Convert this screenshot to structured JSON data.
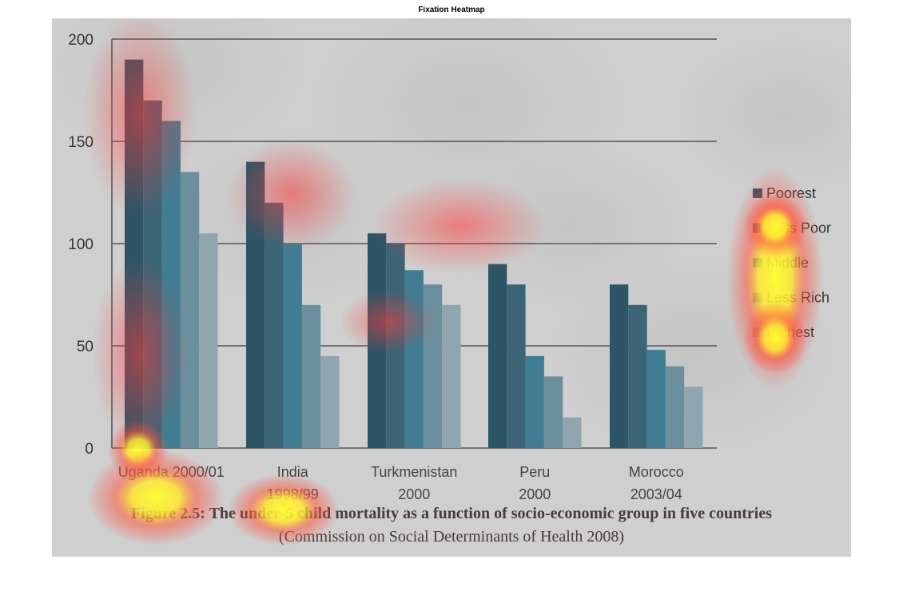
{
  "page": {
    "title": "Fixation Heatmap"
  },
  "chart_data": {
    "type": "bar",
    "categories": [
      [
        "Uganda 2000/01"
      ],
      [
        "India",
        "1998/99"
      ],
      [
        "Turkmenistan",
        "2000"
      ],
      [
        "Peru",
        "2000"
      ],
      [
        "Morocco",
        "2003/04"
      ]
    ],
    "series": [
      {
        "name": "Poorest",
        "values": [
          190,
          140,
          105,
          90,
          80
        ],
        "color": "#2d5566"
      },
      {
        "name": "Less Poor",
        "values": [
          170,
          120,
          100,
          80,
          70
        ],
        "color": "#3b6576"
      },
      {
        "name": "Middle",
        "values": [
          160,
          100,
          87,
          45,
          48
        ],
        "color": "#407d92"
      },
      {
        "name": "Less Rich",
        "values": [
          135,
          70,
          80,
          35,
          40
        ],
        "color": "#6b8f9c"
      },
      {
        "name": "Richest",
        "values": [
          105,
          45,
          70,
          15,
          30
        ],
        "color": "#8fa5af"
      }
    ],
    "ylim": [
      0,
      200
    ],
    "yticks": [
      0,
      50,
      100,
      150,
      200
    ],
    "grid": true,
    "legend_position": "right",
    "caption": "Figure 2.5: The under-5 child mortality as a function of socio-economic group in five countries",
    "caption_source": "(Commission on Social Determinants of Health 2008)",
    "overlay": "fixation heatmap"
  }
}
